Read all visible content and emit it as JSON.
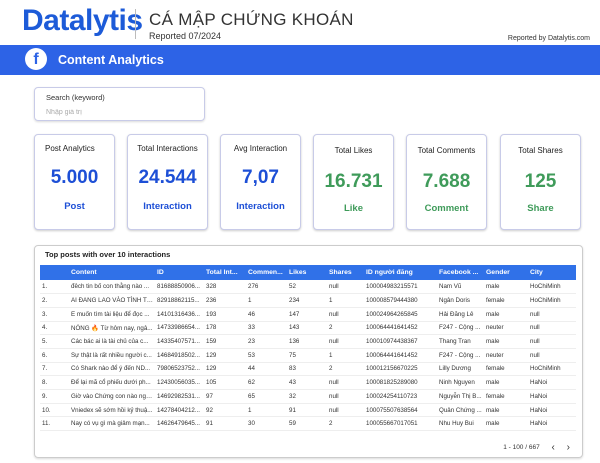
{
  "header": {
    "logo": "Datalytis",
    "brand": "CÁ MẬP CHỨNG KHOÁN",
    "reported": "Reported 07/2024",
    "reported_by": "Reported by Datalytis.com"
  },
  "banner": {
    "icon": "facebook-icon",
    "icon_glyph": "f",
    "title": "Content Analytics",
    "color": "#2d63e6"
  },
  "search": {
    "label": "Search (keyword)",
    "placeholder": "Nhập giá trị",
    "value": ""
  },
  "cards": [
    {
      "title": "Post Analytics",
      "value": "5.000",
      "sub": "Post",
      "color": "#1d4fd6"
    },
    {
      "title": "Total Interactions",
      "value": "24.544",
      "sub": "Interaction",
      "color": "#1d4fd6"
    },
    {
      "title": "Avg Interaction",
      "value": "7,07",
      "sub": "Interaction",
      "color": "#1d4fd6"
    },
    {
      "title": "Total Likes",
      "value": "16.731",
      "sub": "Like",
      "color": "#3f9b5a"
    },
    {
      "title": "Total Comments",
      "value": "7.688",
      "sub": "Comment",
      "color": "#3f9b5a"
    },
    {
      "title": "Total Shares",
      "value": "125",
      "sub": "Share",
      "color": "#3f9b5a"
    }
  ],
  "table": {
    "title": "Top posts with over 10 interactions",
    "columns": [
      "",
      "Content",
      "ID",
      "Total Int...",
      "Commen...",
      "Likes",
      "Shares",
      "ID người đăng",
      "Facebook ...",
      "Gender",
      "City"
    ],
    "rows": [
      [
        "1.",
        "đêch tin bố con thằng nào ...",
        "81688850906...",
        "328",
        "276",
        "52",
        "null",
        "100004983215571",
        "Nam Vũ",
        "male",
        "HoChiMinh"
      ],
      [
        "2.",
        "AI ĐANG LAO VÀO TÌNH TR...",
        "82918862115...",
        "236",
        "1",
        "234",
        "1",
        "100008579444380",
        "Ngân Doris",
        "female",
        "HoChiMinh"
      ],
      [
        "3.",
        "E muốn tìm tài liệu để đọc ...",
        "14101316436...",
        "193",
        "46",
        "147",
        "null",
        "100024964265845",
        "Hải Đăng Lê",
        "male",
        "null"
      ],
      [
        "4.",
        "NÓNG 🔥 Từ hôm nay, ngâ...",
        "14733986654...",
        "178",
        "33",
        "143",
        "2",
        "100064441641452",
        "F247 - Cộng ...",
        "neuter",
        "null"
      ],
      [
        "5.",
        "Các bác ai là tài chủ của c...",
        "14335407571...",
        "159",
        "23",
        "136",
        "null",
        "100010974438367",
        "Thang Tran",
        "male",
        "null"
      ],
      [
        "6.",
        "Sự thật là rất nhiều người c...",
        "14684918502...",
        "129",
        "53",
        "75",
        "1",
        "100064441641452",
        "F247 - Cộng ...",
        "neuter",
        "null"
      ],
      [
        "7.",
        "Có Shark nào để ý đến ND...",
        "79806523752...",
        "129",
        "44",
        "83",
        "2",
        "100012156670225",
        "Lilly Dương",
        "female",
        "HoChiMinh"
      ],
      [
        "8.",
        "Để lại mã cổ phiếu dưới ph...",
        "12430056035...",
        "105",
        "62",
        "43",
        "null",
        "100081825289080",
        "Ninh Nguyen",
        "male",
        "HaNoi"
      ],
      [
        "9.",
        "Giờ vào Chứng con nào ngo...",
        "14692982531...",
        "97",
        "65",
        "32",
        "null",
        "100024254110723",
        "Nguyễn Thị B...",
        "female",
        "HaNoi"
      ],
      [
        "10.",
        "Vniedex sẽ sớm hồi kỷ thuậ...",
        "14278404212...",
        "92",
        "1",
        "91",
        "null",
        "100075507638564",
        "Quân Chứng ...",
        "male",
        "HaNoi"
      ],
      [
        "11.",
        "Nay có vụ gì mà giảm mạn...",
        "14626479645...",
        "91",
        "30",
        "59",
        "2",
        "100055667017051",
        "Nhu Huy Bui",
        "male",
        "HaNoi"
      ]
    ]
  },
  "pager": {
    "text": "1 - 100 / 667",
    "prev": "‹",
    "next": "›"
  }
}
